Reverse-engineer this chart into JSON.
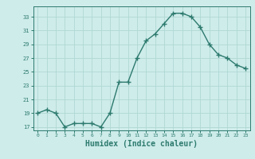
{
  "x": [
    0,
    1,
    2,
    3,
    4,
    5,
    6,
    7,
    8,
    9,
    10,
    11,
    12,
    13,
    14,
    15,
    16,
    17,
    18,
    19,
    20,
    21,
    22,
    23
  ],
  "y": [
    19,
    19.5,
    19,
    17,
    17.5,
    17.5,
    17.5,
    17,
    19,
    23.5,
    23.5,
    27,
    29.5,
    30.5,
    32,
    33.5,
    33.5,
    33,
    31.5,
    29,
    27.5,
    27,
    26,
    25.5
  ],
  "line_color": "#2d7a6e",
  "marker": "+",
  "marker_size": 4,
  "marker_linewidth": 1.0,
  "linewidth": 1.0,
  "background_color": "#ceecea",
  "grid_color": "#b0d8d4",
  "axis_color": "#2d7a6e",
  "tick_color": "#2d7a6e",
  "xlabel": "Humidex (Indice chaleur)",
  "xlabel_fontsize": 7,
  "yticks": [
    17,
    19,
    21,
    23,
    25,
    27,
    29,
    31,
    33
  ],
  "xticks": [
    0,
    1,
    2,
    3,
    4,
    5,
    6,
    7,
    8,
    9,
    10,
    11,
    12,
    13,
    14,
    15,
    16,
    17,
    18,
    19,
    20,
    21,
    22,
    23
  ],
  "ylim": [
    16.5,
    34.5
  ],
  "xlim": [
    -0.5,
    23.5
  ]
}
